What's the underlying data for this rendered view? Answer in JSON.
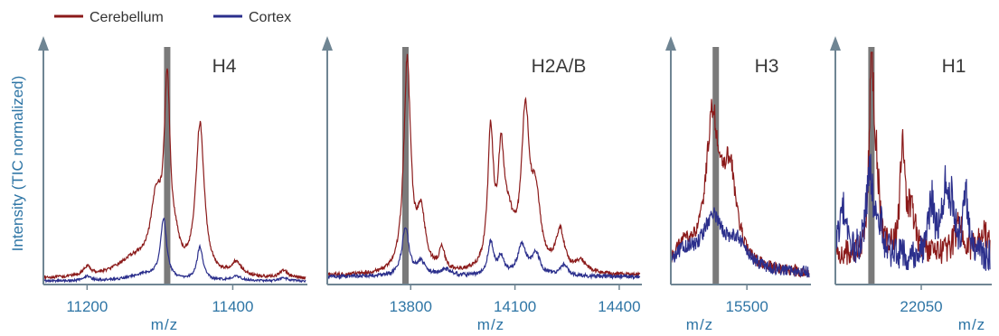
{
  "legend": [
    {
      "name": "Cerebellum",
      "color": "#8b1a1a"
    },
    {
      "name": "Cortex",
      "color": "#2b2f8c"
    }
  ],
  "ylabel": "Intensity (TIC normalized)",
  "axis_color": "#6f8593",
  "highlight_color": "#7a7a7a",
  "chart_data": [
    {
      "type": "line",
      "title": "H4",
      "xlabel": "m/z",
      "xlim": [
        11140,
        11500
      ],
      "ylim": [
        0,
        1.05
      ],
      "ticks": [
        11200,
        11400
      ],
      "tick_labels": [
        "11200",
        "11400"
      ],
      "highlight_x": 11310,
      "series": [
        {
          "name": "Cerebellum",
          "color": "#8b1a1a",
          "peaks": [
            [
              11200,
              0.04,
              6
            ],
            [
              11265,
              0.08,
              30
            ],
            [
              11295,
              0.3,
              9
            ],
            [
              11310,
              0.82,
              5
            ],
            [
              11322,
              0.08,
              6
            ],
            [
              11355,
              0.68,
              7
            ],
            [
              11405,
              0.06,
              9
            ],
            [
              11470,
              0.035,
              6
            ]
          ],
          "baseline": 0.025,
          "noise": 0.006
        },
        {
          "name": "Cortex",
          "color": "#2b2f8c",
          "peaks": [
            [
              11200,
              0.02,
              6
            ],
            [
              11280,
              0.03,
              25
            ],
            [
              11305,
              0.27,
              5
            ],
            [
              11355,
              0.15,
              5
            ],
            [
              11405,
              0.02,
              9
            ],
            [
              11470,
              0.015,
              6
            ]
          ],
          "baseline": 0.015,
          "noise": 0.005
        }
      ]
    },
    {
      "type": "line",
      "title": "H2A/B",
      "xlabel": "m/z",
      "xlim": [
        13560,
        14460
      ],
      "ylim": [
        0,
        1.05
      ],
      "ticks": [
        13800,
        14100,
        14400
      ],
      "tick_labels": [
        "13800",
        "14100",
        "14400"
      ],
      "highlight_x": 13785,
      "series": [
        {
          "name": "Cerebellum",
          "color": "#8b1a1a",
          "peaks": [
            [
              13790,
              0.95,
              12
            ],
            [
              13830,
              0.25,
              15
            ],
            [
              13890,
              0.1,
              10
            ],
            [
              14030,
              0.6,
              10
            ],
            [
              14060,
              0.45,
              10
            ],
            [
              14080,
              0.2,
              20
            ],
            [
              14130,
              0.68,
              14
            ],
            [
              14160,
              0.3,
              16
            ],
            [
              14230,
              0.18,
              15
            ],
            [
              14290,
              0.05,
              20
            ]
          ],
          "baseline": 0.04,
          "noise": 0.008
        },
        {
          "name": "Cortex",
          "color": "#2b2f8c",
          "peaks": [
            [
              13785,
              0.22,
              12
            ],
            [
              13830,
              0.06,
              15
            ],
            [
              13900,
              0.03,
              20
            ],
            [
              14030,
              0.15,
              10
            ],
            [
              14060,
              0.08,
              10
            ],
            [
              14120,
              0.14,
              15
            ],
            [
              14160,
              0.1,
              14
            ],
            [
              14240,
              0.05,
              15
            ]
          ],
          "baseline": 0.035,
          "noise": 0.008
        }
      ]
    },
    {
      "type": "line",
      "title": "H3",
      "xlabel": "m/z",
      "xlim": [
        15280,
        15680
      ],
      "ylim": [
        0,
        1.05
      ],
      "ticks": [
        15500
      ],
      "tick_labels": [
        "15500"
      ],
      "highlight_x": 15410,
      "series": [
        {
          "name": "Cerebellum",
          "color": "#8b1a1a",
          "peaks": [
            [
              15400,
              0.65,
              22
            ],
            [
              15450,
              0.42,
              25
            ],
            [
              15320,
              0.1,
              35
            ]
          ],
          "baseline": 0.05,
          "noise": 0.025
        },
        {
          "name": "Cortex",
          "color": "#2b2f8c",
          "peaks": [
            [
              15400,
              0.22,
              35
            ],
            [
              15320,
              0.08,
              40
            ],
            [
              15470,
              0.12,
              40
            ]
          ],
          "baseline": 0.05,
          "noise": 0.025
        }
      ]
    },
    {
      "type": "line",
      "title": "H1",
      "xlabel": "m/z",
      "xlim": [
        21800,
        22250
      ],
      "ylim": [
        0,
        1.05
      ],
      "ticks": [
        22050
      ],
      "tick_labels": [
        "22050"
      ],
      "highlight_x": 21905,
      "series": [
        {
          "name": "Cerebellum",
          "color": "#8b1a1a",
          "peaks": [
            [
              21905,
              0.92,
              7
            ],
            [
              21920,
              0.3,
              10
            ],
            [
              21995,
              0.45,
              8
            ],
            [
              22020,
              0.2,
              14
            ],
            [
              22160,
              0.15,
              14
            ],
            [
              22230,
              0.12,
              14
            ]
          ],
          "baseline": 0.13,
          "noise": 0.05
        },
        {
          "name": "Cortex",
          "color": "#2b2f8c",
          "peaks": [
            [
              21820,
              0.22,
              12
            ],
            [
              21900,
              0.38,
              12
            ],
            [
              21930,
              0.12,
              10
            ],
            [
              22080,
              0.25,
              10
            ],
            [
              22120,
              0.28,
              12
            ],
            [
              22140,
              0.18,
              10
            ],
            [
              22180,
              0.25,
              10
            ]
          ],
          "baseline": 0.12,
          "noise": 0.06
        }
      ]
    }
  ]
}
